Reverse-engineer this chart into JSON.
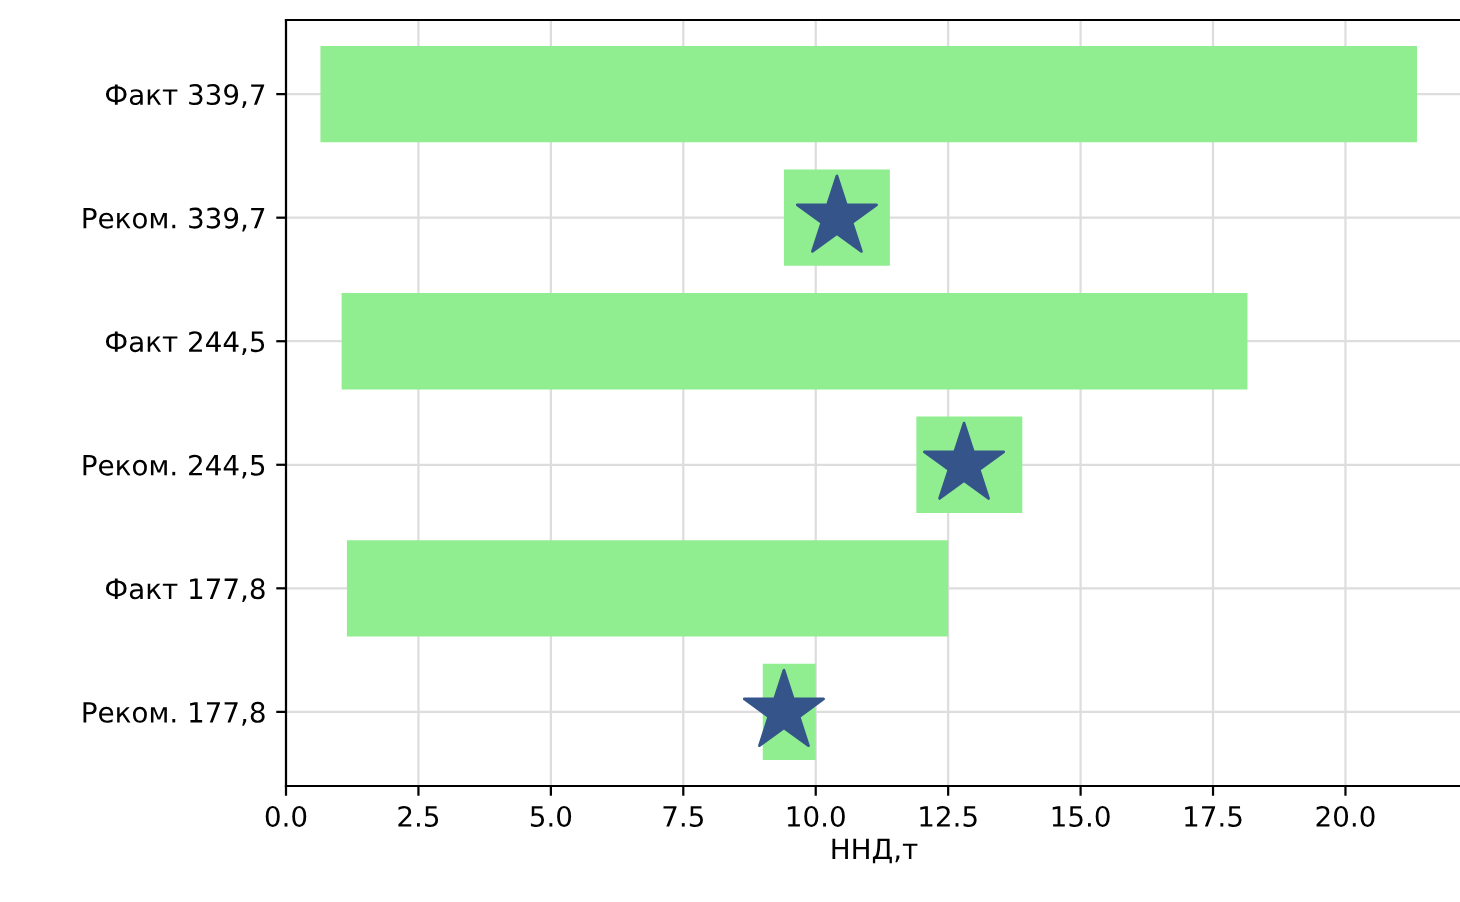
{
  "chart_data": {
    "type": "bar",
    "orientation": "horizontal",
    "xlabel": "ННД,т",
    "categories": [
      "Факт 339,7",
      "Реком. 339,7",
      "Факт 244,5",
      "Реком. 244,5",
      "Факт 177,8",
      "Реком. 177,8"
    ],
    "series": [
      {
        "color": "#90ee90",
        "values": [
          20.7,
          2.0,
          17.1,
          2.0,
          11.35,
          1.0
        ],
        "base": [
          0.65,
          9.4,
          1.05,
          11.9,
          1.15,
          9.0
        ]
      },
      {
        "type": "scatter",
        "color": "#34548a",
        "marker": "star",
        "values": [
          null,
          10.4,
          null,
          12.8,
          null,
          9.4
        ]
      }
    ],
    "xlim": [
      0,
      22.2
    ],
    "xticks": [
      {
        "value": 0,
        "label": "0.0"
      },
      {
        "value": 2.5,
        "label": "2.5"
      },
      {
        "value": 5,
        "label": "5.0"
      },
      {
        "value": 7.5,
        "label": "7.5"
      },
      {
        "value": 10,
        "label": "10.0"
      },
      {
        "value": 12.5,
        "label": "12.5"
      },
      {
        "value": 15,
        "label": "15.0"
      },
      {
        "value": 17.5,
        "label": "17.5"
      },
      {
        "value": 20,
        "label": "20.0"
      }
    ],
    "grid": true
  }
}
